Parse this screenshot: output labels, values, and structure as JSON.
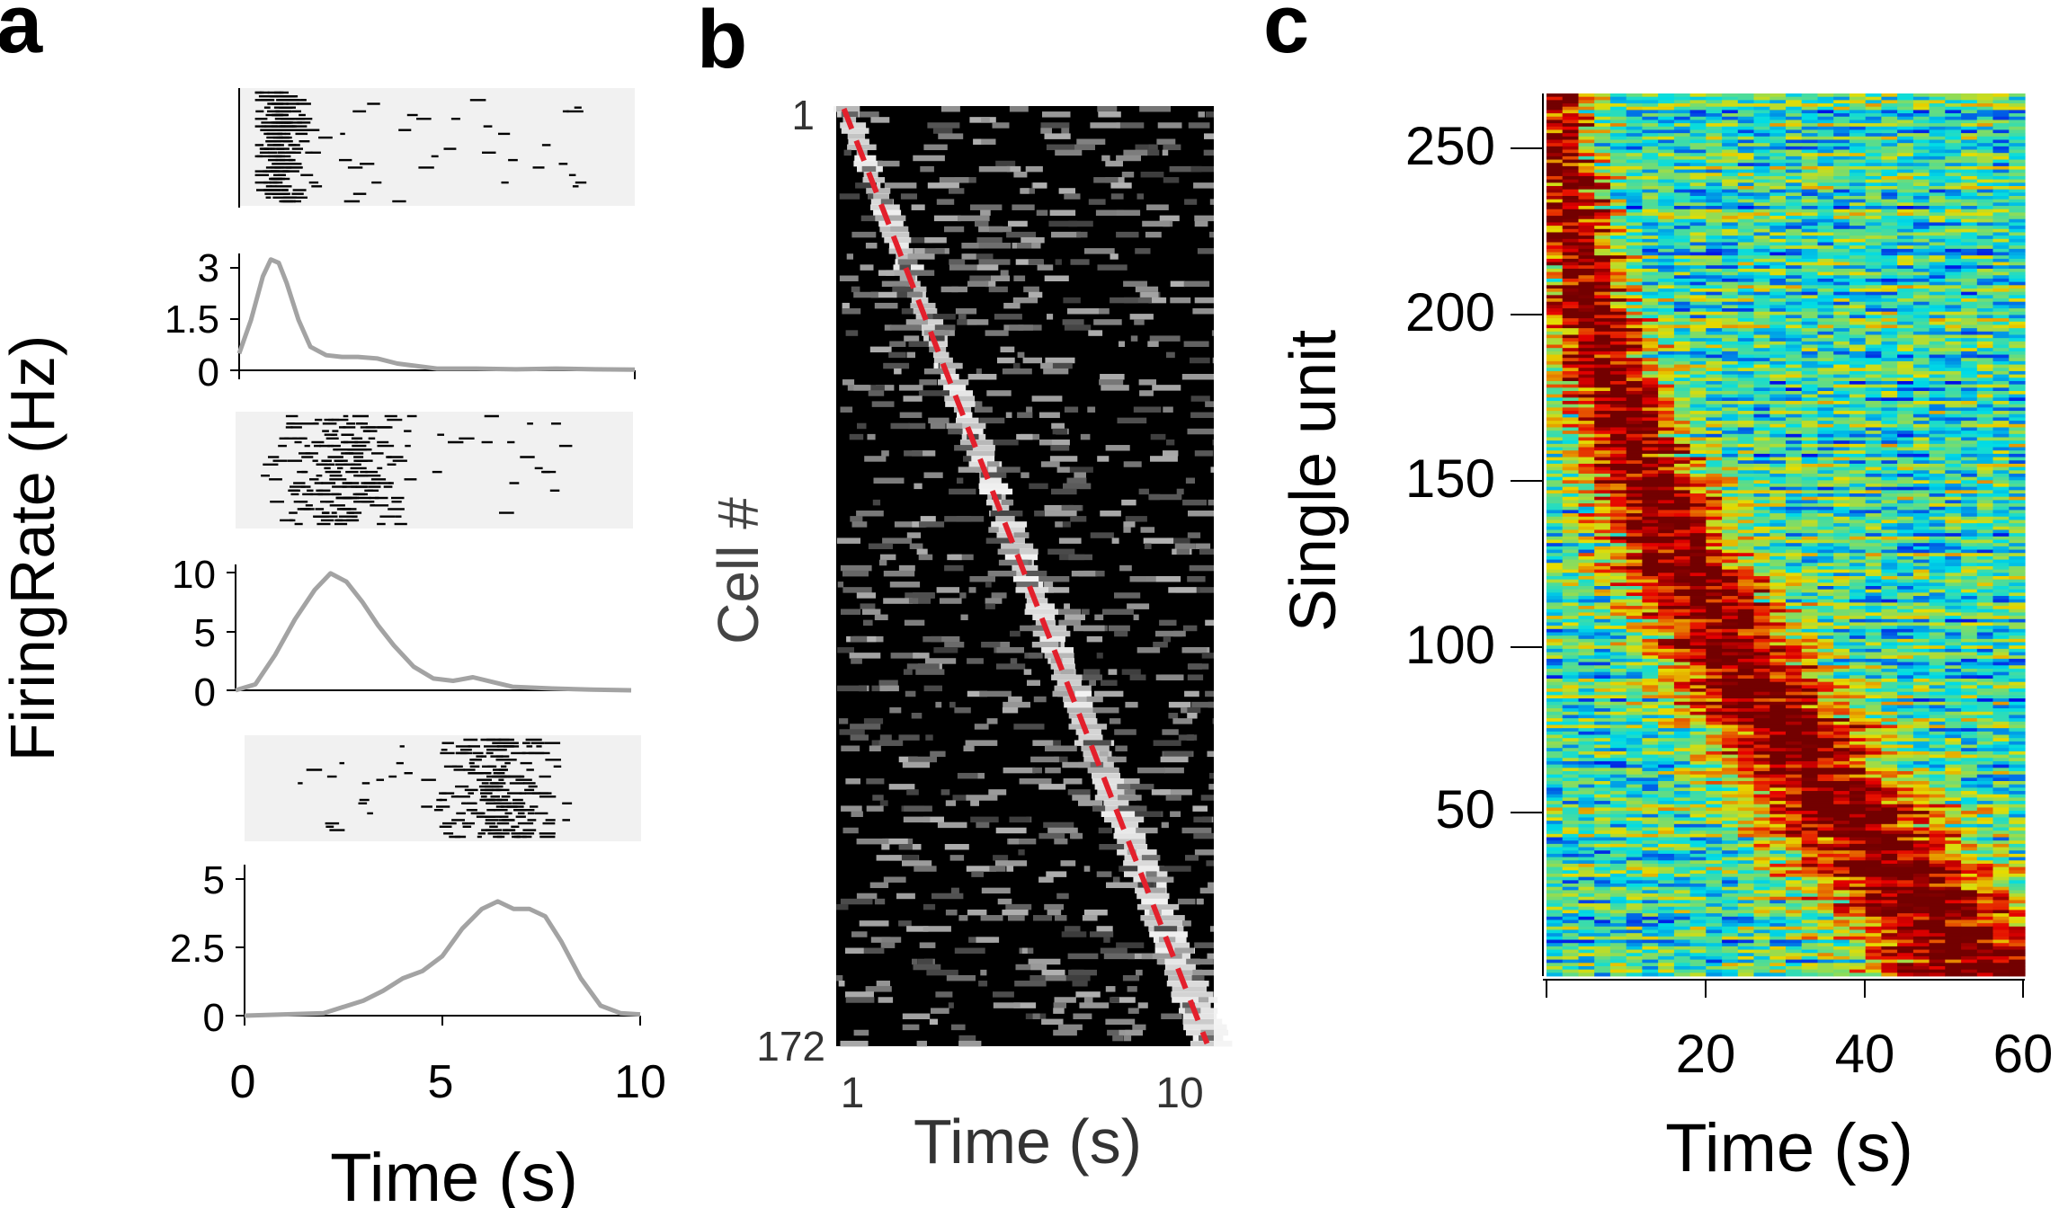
{
  "panels": {
    "a": {
      "letter": "a"
    },
    "b": {
      "letter": "b"
    },
    "c": {
      "letter": "c"
    }
  },
  "colors": {
    "raster_bg": "#f1f1f1",
    "spike": "#000000",
    "rate_line": "#a3a3a3",
    "heatmap_dark": "#000000",
    "sequence_line": "#e3202c"
  },
  "chart_data": [
    {
      "type": "line",
      "panel": "a",
      "xlabel": "Time (s)",
      "ylabel": "FiringRate (Hz)",
      "xticks": [
        "0",
        "5",
        "10"
      ],
      "xlim": [
        0,
        10
      ],
      "subplots": [
        {
          "raster": {
            "trials": 30,
            "spike_time_range": [
              0.4,
              8.5
            ],
            "peak_time": 0.9
          },
          "yticks": [
            "0",
            "1.5",
            "3"
          ],
          "ylim": [
            0,
            3.8
          ],
          "x": [
            0,
            0.3,
            0.6,
            0.8,
            1.0,
            1.2,
            1.5,
            1.8,
            2.2,
            2.6,
            3.0,
            3.5,
            4.0,
            5.0,
            6.0,
            7.0,
            8.0,
            9.0,
            10.0
          ],
          "y": [
            0.5,
            1.5,
            2.8,
            3.3,
            3.2,
            2.6,
            1.5,
            0.7,
            0.45,
            0.4,
            0.4,
            0.35,
            0.2,
            0.05,
            0.05,
            0.03,
            0.05,
            0.03,
            0.02
          ]
        },
        {
          "raster": {
            "trials": 30,
            "spike_time_range": [
              0.5,
              8.8
            ],
            "peak_time": 2.5
          },
          "yticks": [
            "0",
            "5",
            "10"
          ],
          "ylim": [
            0,
            10.5
          ],
          "x": [
            0,
            0.5,
            1.0,
            1.5,
            2.0,
            2.4,
            2.8,
            3.2,
            3.6,
            4.0,
            4.5,
            5.0,
            5.5,
            6.0,
            6.5,
            7.0,
            8.0,
            9.0,
            10.0
          ],
          "y": [
            0,
            0.5,
            3.0,
            6.0,
            8.5,
            9.9,
            9.2,
            7.5,
            5.5,
            3.8,
            2.0,
            1.0,
            0.8,
            1.1,
            0.7,
            0.3,
            0.15,
            0.05,
            0.0
          ]
        },
        {
          "raster": {
            "trials": 30,
            "spike_time_range": [
              1.3,
              8.2
            ],
            "peak_time": 6.3
          },
          "yticks": [
            "0",
            "2.5",
            "5"
          ],
          "ylim": [
            0,
            5.5
          ],
          "x": [
            0,
            1.0,
            2.0,
            3.0,
            3.5,
            4.0,
            4.5,
            5.0,
            5.5,
            6.0,
            6.4,
            6.8,
            7.2,
            7.6,
            8.0,
            8.5,
            9.0,
            9.5,
            10.0
          ],
          "y": [
            0,
            0.05,
            0.1,
            0.6,
            1.0,
            1.5,
            1.8,
            2.4,
            3.5,
            4.3,
            4.6,
            4.3,
            4.3,
            4.0,
            3.0,
            1.5,
            0.4,
            0.1,
            0.05
          ]
        }
      ]
    },
    {
      "type": "heatmap",
      "panel": "b",
      "xlabel": "Time (s)",
      "ylabel": "Cell #",
      "xscale": "log",
      "xlim": [
        0.95,
        11.5
      ],
      "xticks": [
        "1",
        "10"
      ],
      "ylim": [
        1,
        172
      ],
      "yticks": [
        "1",
        "172"
      ],
      "cells": 172,
      "colormap": "gray",
      "overlay": {
        "style": "dashed",
        "from_time": 1.0,
        "to_time": 11.0
      }
    },
    {
      "type": "heatmap",
      "panel": "c",
      "xlabel": "Time (s)",
      "ylabel": "Single unit",
      "xlim": [
        0,
        60
      ],
      "xticks": [
        "20",
        "40",
        "60"
      ],
      "ylim": [
        1,
        267
      ],
      "yticks": [
        "50",
        "100",
        "150",
        "200",
        "250"
      ],
      "units": 267,
      "colormap": "jet",
      "peak_time_range": [
        2,
        58
      ]
    }
  ]
}
